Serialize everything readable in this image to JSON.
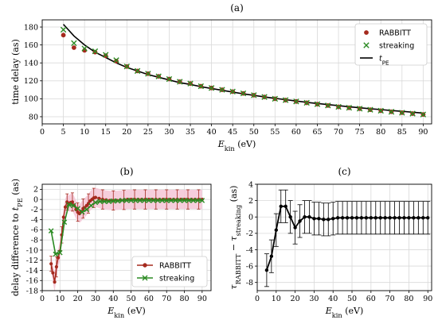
{
  "colors": {
    "rabbitt": "#a52a1e",
    "streaking": "#2a8a22",
    "tpe": "#000000",
    "errfill": "#f4c6d6",
    "fit": "#000000"
  },
  "chart_data": [
    {
      "id": "a",
      "panel_label": "(a)",
      "type": "scatter",
      "xlabel": "E_kin (eV)",
      "ylabel": "time delay (as)",
      "xlim": [
        0,
        92
      ],
      "ylim": [
        72,
        188
      ],
      "xticks": [
        0,
        5,
        10,
        15,
        20,
        25,
        30,
        35,
        40,
        45,
        50,
        55,
        60,
        65,
        70,
        75,
        80,
        85,
        90
      ],
      "yticks": [
        80,
        100,
        120,
        140,
        160,
        180
      ],
      "grid": true,
      "legend": {
        "position": "top-right",
        "entries": [
          "RABBITT",
          "streaking",
          "t_PE"
        ]
      },
      "series": [
        {
          "name": "RABBITT",
          "marker": "circle",
          "x": [
            5,
            7.5,
            10,
            12.5,
            15,
            17.5,
            20,
            22.5,
            25,
            27.5,
            30,
            32.5,
            35,
            37.5,
            40,
            42.5,
            45,
            47.5,
            50,
            52.5,
            55,
            57.5,
            60,
            62.5,
            65,
            67.5,
            70,
            72.5,
            75,
            77.5,
            80,
            82.5,
            85,
            87.5,
            90
          ],
          "y": [
            171,
            157,
            154,
            152,
            148,
            142,
            136,
            131,
            128,
            125,
            122,
            119,
            117,
            114,
            112,
            110,
            108,
            106,
            104,
            102,
            100,
            98.5,
            97,
            95.5,
            94,
            92.5,
            91,
            90,
            89,
            87.8,
            86.7,
            85.5,
            84.5,
            83.5,
            82.5
          ]
        },
        {
          "name": "streaking",
          "marker": "x",
          "x": [
            5,
            7.5,
            10,
            12.5,
            15,
            17.5,
            20,
            22.5,
            25,
            27.5,
            30,
            32.5,
            35,
            37.5,
            40,
            42.5,
            45,
            47.5,
            50,
            52.5,
            55,
            57.5,
            60,
            62.5,
            65,
            67.5,
            70,
            72.5,
            75,
            77.5,
            80,
            82.5,
            85,
            87.5,
            90
          ],
          "y": [
            177,
            162,
            156,
            153,
            149,
            143,
            136,
            131,
            128,
            125,
            122,
            119,
            117,
            114,
            112,
            110,
            108,
            106,
            104,
            102,
            100,
            98.5,
            97,
            95.5,
            94,
            92.5,
            91,
            90,
            89,
            87.8,
            86.7,
            85.5,
            84.5,
            83.5,
            82.5
          ]
        },
        {
          "name": "t_PE",
          "line": true,
          "x": [
            5,
            7.5,
            10,
            12.5,
            15,
            17.5,
            20,
            22.5,
            25,
            27.5,
            30,
            32.5,
            35,
            37.5,
            40,
            42.5,
            45,
            47.5,
            50,
            52.5,
            55,
            57.5,
            60,
            62.5,
            65,
            67.5,
            70,
            72.5,
            75,
            77.5,
            80,
            82.5,
            85,
            87.5,
            90
          ],
          "y": [
            183,
            170,
            160,
            152,
            146,
            140,
            135,
            131,
            127,
            124,
            121,
            118,
            116,
            113.5,
            111.5,
            109.5,
            107.5,
            105.5,
            103.8,
            102,
            100.5,
            99,
            97.5,
            96,
            94.8,
            93.5,
            92.3,
            91.1,
            90,
            88.9,
            87.9,
            86.9,
            86,
            85,
            84
          ]
        }
      ]
    },
    {
      "id": "b",
      "panel_label": "(b)",
      "type": "line",
      "xlabel": "E_kin (eV)",
      "ylabel": "delay difference to t_PE (as)",
      "xlim": [
        0,
        95
      ],
      "ylim": [
        -18,
        3
      ],
      "xticks": [
        0,
        10,
        20,
        30,
        40,
        50,
        60,
        70,
        80,
        90
      ],
      "yticks": [
        2,
        0,
        -2,
        -4,
        -6,
        -8,
        -10,
        -12,
        -14,
        -16,
        -18
      ],
      "grid": true,
      "legend": {
        "position": "bottom-right",
        "entries": [
          "RABBITT",
          "streaking"
        ]
      },
      "series": [
        {
          "name": "RABBITT",
          "marker": "circle",
          "x": [
            5,
            6,
            7,
            8,
            9,
            10,
            11,
            12,
            13,
            14,
            15,
            16,
            17,
            18,
            19,
            20,
            21,
            22,
            23,
            24,
            25,
            26,
            27,
            28,
            29,
            30,
            32,
            34,
            36,
            38,
            40,
            42,
            44,
            46,
            48,
            50,
            52,
            54,
            56,
            58,
            60,
            62,
            64,
            66,
            68,
            70,
            72,
            74,
            76,
            78,
            80,
            82,
            84,
            86,
            88,
            90
          ],
          "y": [
            -12.7,
            -14.5,
            -16.3,
            -13.3,
            -11.5,
            -10.2,
            -7,
            -3.5,
            -1.5,
            -0.5,
            -0.8,
            -0.6,
            -0.5,
            -1.2,
            -2,
            -2.5,
            -2.8,
            -2.4,
            -1.8,
            -1.6,
            -1.2,
            -0.8,
            -0.3,
            0,
            0.3,
            0.4,
            0.2,
            0,
            -0.1,
            -0.2,
            -0.2,
            -0.2,
            -0.1,
            -0.1,
            0,
            0,
            0,
            0,
            0,
            0,
            0,
            0,
            0,
            0,
            0,
            0,
            0,
            0,
            0,
            0,
            0,
            0,
            0,
            0,
            0,
            0
          ],
          "err": [
            1.5,
            1.8,
            2,
            2,
            1.8,
            1.8,
            1.6,
            1.5,
            1.6,
            1.6,
            1.6,
            1.7,
            1.8,
            1.8,
            1.8,
            1.8,
            1.8,
            1.9,
            1.9,
            1.9,
            1.9,
            1.9,
            1.9,
            1.9,
            1.9,
            1.9,
            1.9,
            1.9,
            1.9,
            1.9,
            1.9,
            1.9,
            1.9,
            1.9,
            1.9,
            1.9,
            1.9,
            1.9,
            1.9,
            1.9,
            1.9,
            1.9,
            1.9,
            1.9,
            1.9,
            1.9,
            1.9,
            1.9,
            1.9,
            1.9,
            1.9,
            1.9,
            1.9,
            1.9,
            1.9,
            1.9
          ]
        },
        {
          "name": "streaking",
          "marker": "x",
          "x": [
            5,
            7.5,
            10,
            12.5,
            15,
            17.5,
            20,
            22.5,
            25,
            27.5,
            30,
            32.5,
            35,
            37.5,
            40,
            42.5,
            45,
            47.5,
            50,
            52.5,
            55,
            57.5,
            60,
            62.5,
            65,
            67.5,
            70,
            72.5,
            75,
            77.5,
            80,
            82.5,
            85,
            87.5,
            90
          ],
          "y": [
            -6.2,
            -10.8,
            -10.5,
            -4.5,
            -1,
            -1.2,
            -1.8,
            -2.5,
            -2,
            -1.2,
            -0.6,
            -0.4,
            -0.4,
            -0.4,
            -0.3,
            -0.3,
            -0.2,
            -0.2,
            -0.2,
            -0.2,
            -0.2,
            -0.2,
            -0.2,
            -0.2,
            -0.2,
            -0.2,
            -0.2,
            -0.2,
            -0.2,
            -0.2,
            -0.2,
            -0.2,
            -0.2,
            -0.2,
            -0.2
          ],
          "err": [
            0,
            0,
            0,
            0,
            0,
            0,
            0,
            0,
            0,
            0,
            0,
            0,
            0,
            0,
            0,
            0,
            0,
            0,
            0,
            0,
            0,
            0,
            0,
            0,
            0,
            0,
            0,
            0,
            0,
            0,
            0,
            0,
            0,
            0,
            0
          ]
        }
      ]
    },
    {
      "id": "c",
      "panel_label": "(c)",
      "type": "line",
      "xlabel": "E_kin (eV)",
      "ylabel": "τ_RABBITT − τ_streaking (as)",
      "xlim": [
        0,
        92
      ],
      "ylim": [
        -9,
        4
      ],
      "xticks": [
        0,
        10,
        20,
        30,
        40,
        50,
        60,
        70,
        80,
        90
      ],
      "yticks": [
        4,
        2,
        0,
        -2,
        -4,
        -6,
        -8
      ],
      "grid": true,
      "series": [
        {
          "name": "",
          "marker": "circle",
          "x": [
            5,
            7.5,
            10,
            12.5,
            15,
            17.5,
            20,
            22.5,
            25,
            27.5,
            30,
            32.5,
            35,
            37.5,
            40,
            42.5,
            45,
            47.5,
            50,
            52.5,
            55,
            57.5,
            60,
            62.5,
            65,
            67.5,
            70,
            72.5,
            75,
            77.5,
            80,
            82.5,
            85,
            87.5,
            90
          ],
          "y": [
            -6.5,
            -4.8,
            -1.6,
            1.3,
            1.3,
            0,
            -1.3,
            -0.5,
            0,
            0,
            -0.2,
            -0.2,
            -0.3,
            -0.3,
            -0.2,
            -0.1,
            -0.1,
            -0.1,
            -0.1,
            -0.1,
            -0.1,
            -0.1,
            -0.1,
            -0.1,
            -0.1,
            -0.1,
            -0.1,
            -0.1,
            -0.1,
            -0.1,
            -0.1,
            -0.1,
            -0.1,
            -0.1,
            -0.1
          ],
          "err": [
            2,
            2,
            2,
            2,
            2,
            2,
            2,
            2,
            2,
            2,
            2,
            2,
            2,
            2,
            2,
            2,
            2,
            2,
            2,
            2,
            2,
            2,
            2,
            2,
            2,
            2,
            2,
            2,
            2,
            2,
            2,
            2,
            2,
            2,
            2
          ]
        }
      ]
    }
  ]
}
